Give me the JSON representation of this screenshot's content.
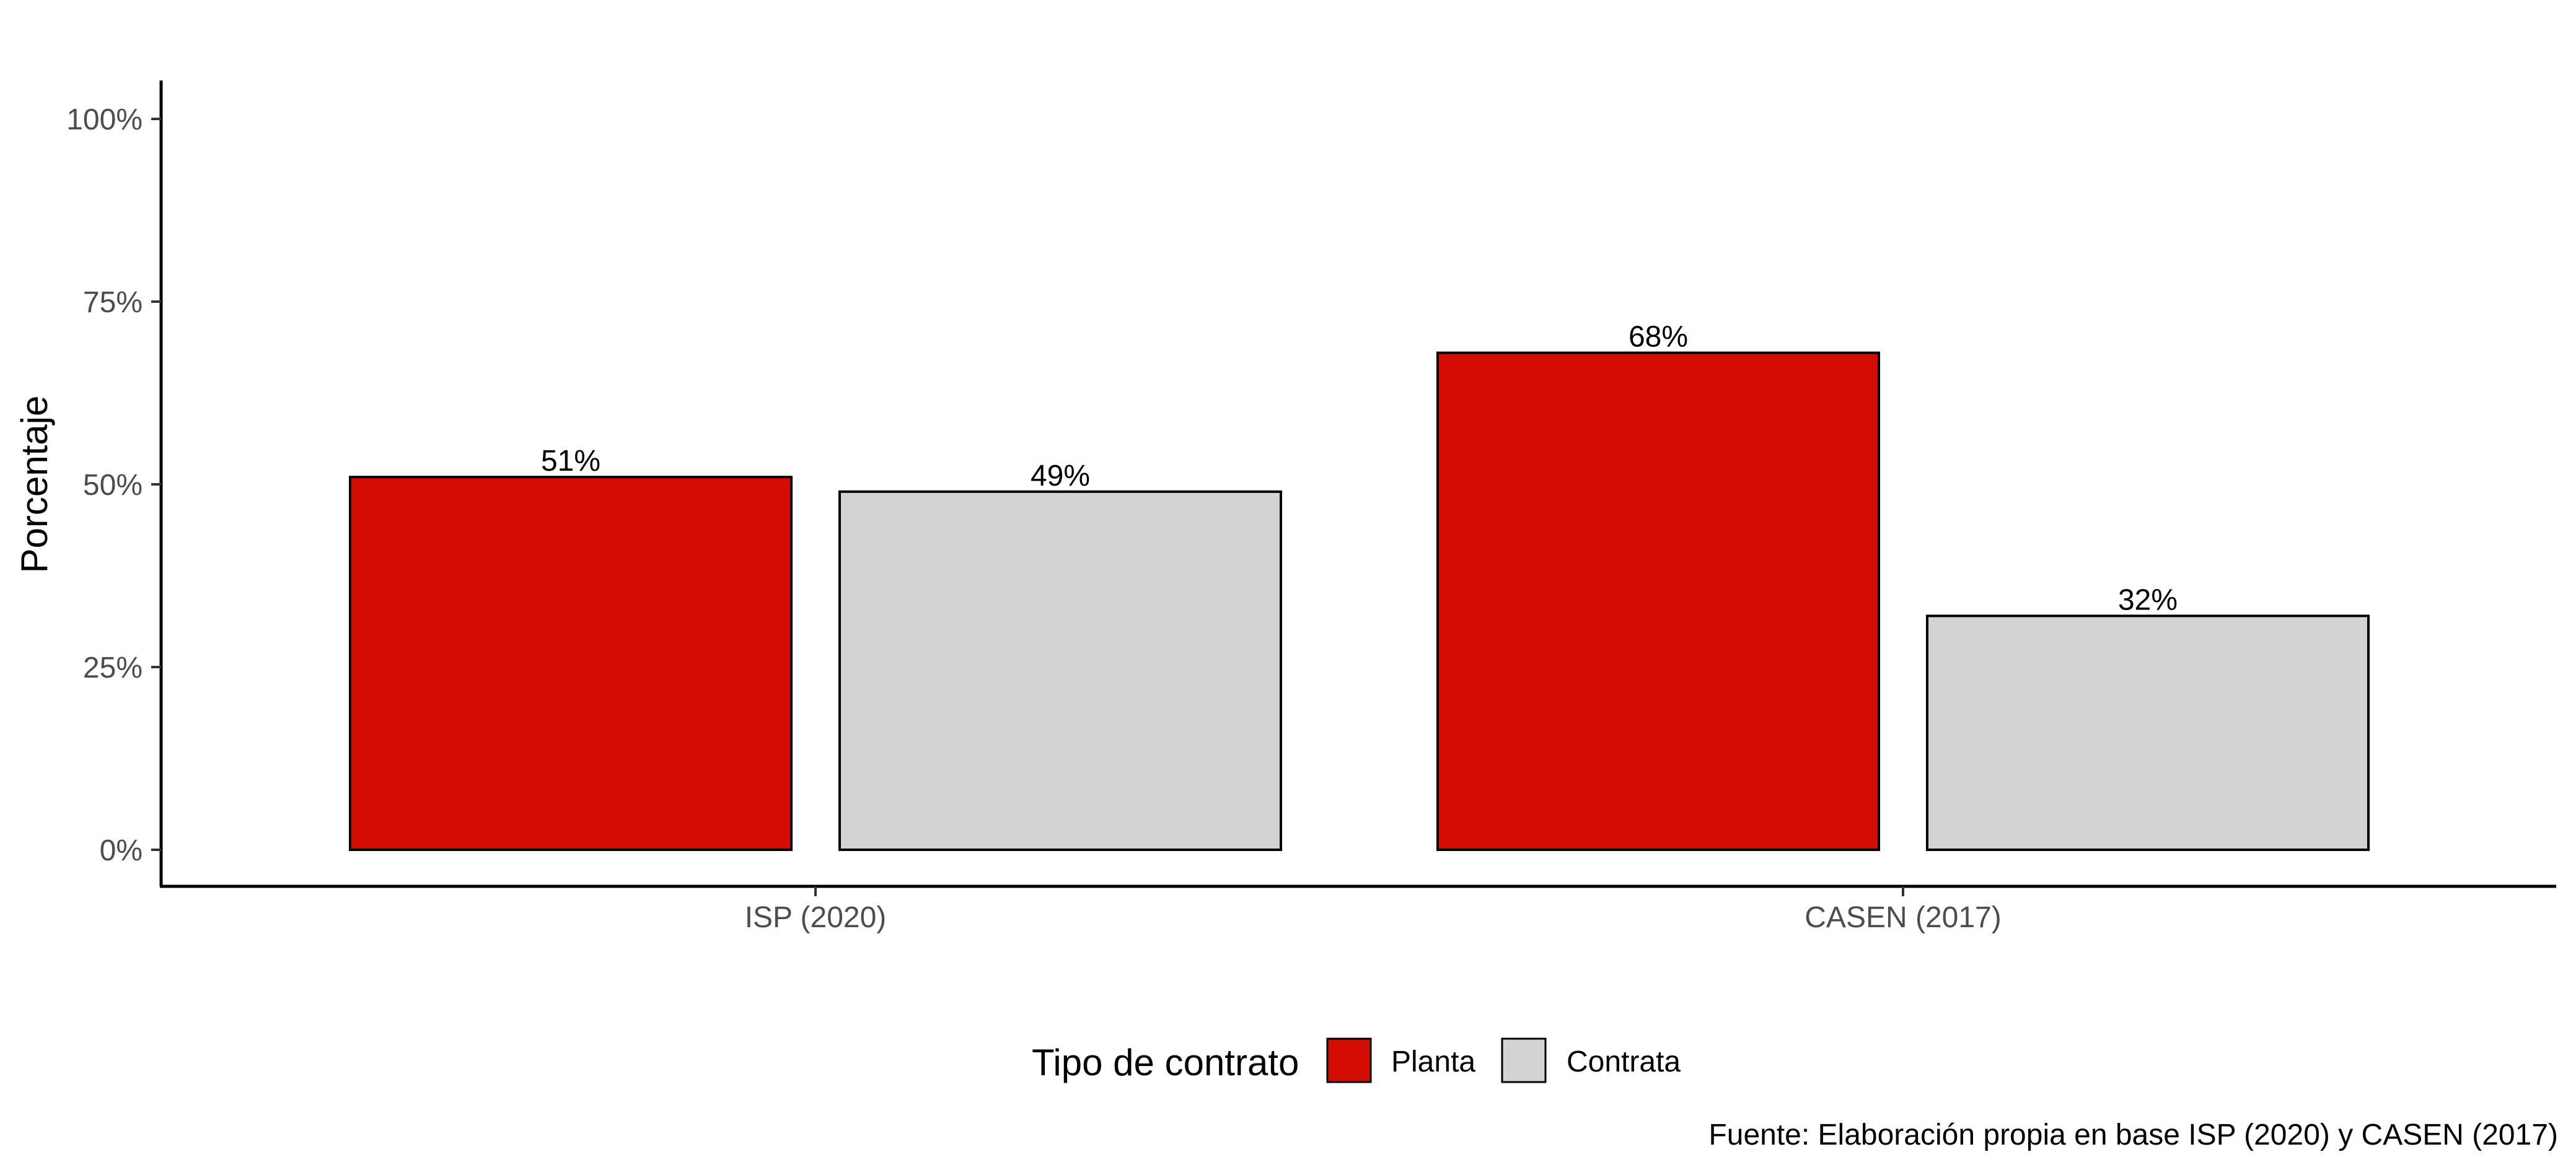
{
  "chart_data": {
    "type": "bar",
    "title": "",
    "xlabel": "",
    "ylabel": "Porcentaje",
    "categories": [
      "ISP (2020)",
      "CASEN (2017)"
    ],
    "series": [
      {
        "name": "Planta",
        "color": "#d50c04",
        "values": [
          51,
          68
        ],
        "labels": [
          "51%",
          "68%"
        ]
      },
      {
        "name": "Contrata",
        "color": "#d3d3d3",
        "values": [
          49,
          32
        ],
        "labels": [
          "49%",
          "32%"
        ]
      }
    ],
    "ylim": [
      0,
      100
    ],
    "yticks": [
      0,
      25,
      50,
      75,
      100
    ],
    "ytick_labels": [
      "0%",
      "25%",
      "50%",
      "75%",
      "100%"
    ],
    "legend": {
      "title": "Tipo de contrato",
      "placement": "bottom"
    },
    "caption": "Fuente: Elaboración propia en base ISP (2020) y CASEN (2017)",
    "grid": false
  }
}
